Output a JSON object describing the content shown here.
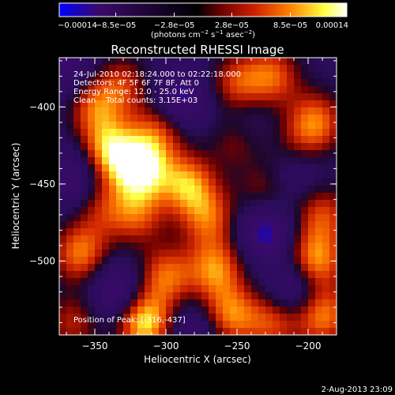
{
  "chart_data": {
    "type": "heatmap",
    "title": "Reconstructed RHESSI Image",
    "xlabel": "Heliocentric X (arcsec)",
    "ylabel": "Heliocentric Y (arcsec)",
    "xlim": [
      -375,
      -180
    ],
    "ylim": [
      -548,
      -368
    ],
    "x_ticks": [
      -350,
      -300,
      -250,
      -200
    ],
    "y_ticks": [
      -400,
      -450,
      -500
    ],
    "x_tick_labels": [
      "−350",
      "−300",
      "−250",
      "−200"
    ],
    "y_tick_labels": [
      "−400",
      "−450",
      "−500"
    ],
    "colorbar": {
      "min": -0.00014,
      "max": 0.00014,
      "tick_values": [
        -0.00014,
        -8.5e-05,
        -2.8e-05,
        2.8e-05,
        8.5e-05,
        0.00014
      ],
      "tick_labels": [
        "−0.00014",
        "−8.5e−05",
        "−2.8e−05",
        "2.8e−05",
        "8.5e−05",
        "0.00014"
      ],
      "unit_main": "(photons cm",
      "unit_exp1": "−2",
      "unit_mid": " s",
      "unit_exp2": "−1",
      "unit_after": " asec",
      "unit_exp3": "−2",
      "unit_close": ")",
      "colors": [
        "#0000ff",
        "#3a0a6a",
        "#000000",
        "#6a0000",
        "#d02000",
        "#ff8000",
        "#ffff40",
        "#ffffff"
      ]
    },
    "annotations": [
      "24-Jul-2010 02:18:24.000 to 02:22:18.000",
      "Detectors: 4F 5F 6F 7F 8F, Att 0",
      "Energy Range: 12.0 - 25.0 keV",
      "Clean    Total counts: 3.15E+03"
    ],
    "peak_label": "Position of Peak: [-316,-437]",
    "peak": [
      -316,
      -437
    ],
    "blobs": [
      {
        "x": -318,
        "y": -440,
        "v": 1.0
      },
      {
        "x": -340,
        "y": -428,
        "v": 0.8
      },
      {
        "x": -285,
        "y": -450,
        "v": 0.75
      },
      {
        "x": -305,
        "y": -415,
        "v": 0.55
      },
      {
        "x": -265,
        "y": -505,
        "v": 0.7
      },
      {
        "x": -300,
        "y": -510,
        "v": 0.65
      },
      {
        "x": -270,
        "y": -472,
        "v": 0.6
      },
      {
        "x": -250,
        "y": -385,
        "v": 0.55
      },
      {
        "x": -225,
        "y": -380,
        "v": 0.6
      },
      {
        "x": -350,
        "y": -400,
        "v": 0.6
      },
      {
        "x": -330,
        "y": -385,
        "v": 0.45
      },
      {
        "x": -195,
        "y": -410,
        "v": 0.7
      },
      {
        "x": -190,
        "y": -470,
        "v": 0.55
      },
      {
        "x": -195,
        "y": -500,
        "v": 0.8
      },
      {
        "x": -190,
        "y": -535,
        "v": 0.75
      },
      {
        "x": -225,
        "y": -540,
        "v": 0.55
      },
      {
        "x": -255,
        "y": -535,
        "v": 0.7
      },
      {
        "x": -315,
        "y": -540,
        "v": 0.95
      },
      {
        "x": -360,
        "y": -495,
        "v": 0.7
      },
      {
        "x": -365,
        "y": -540,
        "v": 0.45
      },
      {
        "x": -250,
        "y": -420,
        "v": 0.45
      },
      {
        "x": -230,
        "y": -455,
        "v": 0.4
      },
      {
        "x": -320,
        "y": -470,
        "v": 0.55
      },
      {
        "x": -345,
        "y": -465,
        "v": 0.4
      },
      {
        "x": -210,
        "y": -430,
        "v": 0.4
      },
      {
        "x": -370,
        "y": -375,
        "v": -0.4
      },
      {
        "x": -365,
        "y": -445,
        "v": -0.45
      },
      {
        "x": -335,
        "y": -520,
        "v": -0.5
      },
      {
        "x": -290,
        "y": -395,
        "v": -0.55
      },
      {
        "x": -230,
        "y": -480,
        "v": -0.6
      },
      {
        "x": -208,
        "y": -518,
        "v": -0.5
      },
      {
        "x": -210,
        "y": -440,
        "v": -0.45
      },
      {
        "x": -280,
        "y": -545,
        "v": -0.35
      },
      {
        "x": -245,
        "y": -410,
        "v": -0.3
      }
    ]
  },
  "footer_date": "2-Aug-2013 23:09"
}
